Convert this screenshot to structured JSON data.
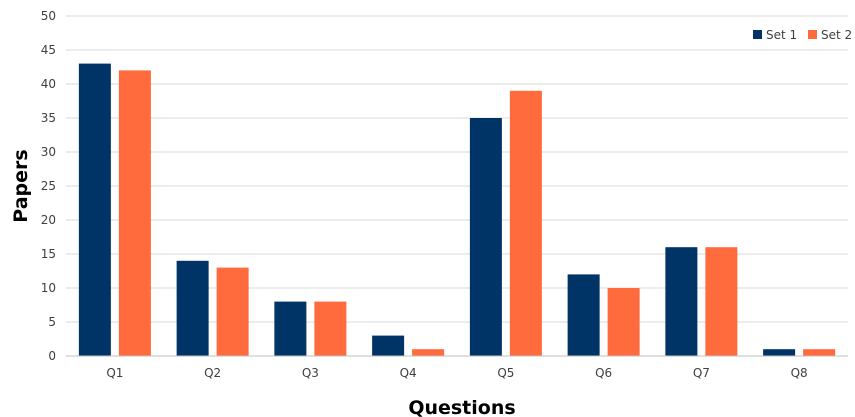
{
  "chart_data": {
    "type": "bar",
    "title": "",
    "xlabel": "Questions",
    "ylabel": "Papers",
    "categories": [
      "Q1",
      "Q2",
      "Q3",
      "Q4",
      "Q5",
      "Q6",
      "Q7",
      "Q8"
    ],
    "series": [
      {
        "name": "Set 1",
        "color": "#003366",
        "values": [
          43,
          14,
          8,
          3,
          35,
          12,
          16,
          1
        ]
      },
      {
        "name": "Set 2",
        "color": "#FF6B3D",
        "values": [
          42,
          13,
          8,
          1,
          39,
          10,
          16,
          1
        ]
      }
    ],
    "ylim": [
      0,
      50
    ],
    "yticks": [
      0,
      5,
      10,
      15,
      20,
      25,
      30,
      35,
      40,
      45,
      50
    ],
    "grid": true,
    "legend_position": "top-right"
  }
}
